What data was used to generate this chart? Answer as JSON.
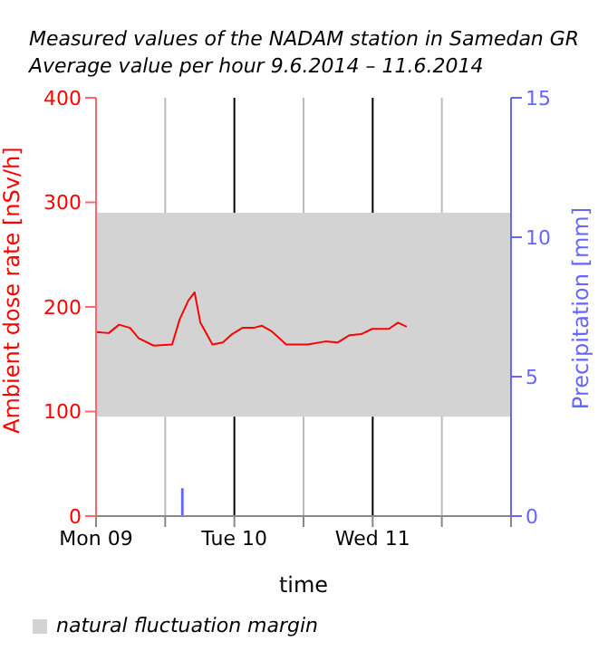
{
  "chart_data": {
    "type": "line",
    "title": "Measured values of the NADAM station in Samedan GR",
    "subtitle": "Average value per hour 9.6.2014 – 11.6.2014",
    "xlabel": "time",
    "ylabel": "Ambient dose rate [nSv/h]",
    "y2label": "Precipitation [mm]",
    "xlim": [
      "2014-06-09",
      "2014-06-12"
    ],
    "xticks": [
      {
        "value": "2014-06-09",
        "label": "Mon 09"
      },
      {
        "value": "2014-06-09T12:00",
        "label": null
      },
      {
        "value": "2014-06-10",
        "label": "Tue 10"
      },
      {
        "value": "2014-06-10T12:00",
        "label": null
      },
      {
        "value": "2014-06-11",
        "label": "Wed 11"
      },
      {
        "value": "2014-06-11T12:00",
        "label": null
      },
      {
        "value": "2014-06-12",
        "label": null
      }
    ],
    "ylim": [
      0,
      400
    ],
    "yticks": [
      0,
      100,
      200,
      300,
      400
    ],
    "y2lim": [
      0,
      15
    ],
    "y2ticks": [
      0,
      5,
      10,
      15
    ],
    "grid": "x",
    "legend": "bottom left",
    "marker": "none",
    "line_style": "solid",
    "bands": [
      {
        "axis": "y",
        "from": 95,
        "to": 290,
        "label": "natural fluctuation margin",
        "color": "#d3d3d3"
      }
    ],
    "series": [
      {
        "color": "#ff0000",
        "axis": "y",
        "x": [
          "2014-06-09T00:00",
          "2014-06-09T02:12",
          "2014-06-09T04:00",
          "2014-06-09T05:54",
          "2014-06-09T07:24",
          "2014-06-09T10:00",
          "2014-06-09T13:12",
          "2014-06-09T14:30",
          "2014-06-09T16:00",
          "2014-06-09T17:06",
          "2014-06-09T18:06",
          "2014-06-09T20:12",
          "2014-06-09T22:00",
          "2014-06-09T23:36",
          "2014-06-10T01:24",
          "2014-06-10T03:18",
          "2014-06-10T04:48",
          "2014-06-10T06:24",
          "2014-06-10T09:00",
          "2014-06-10T12:42",
          "2014-06-10T15:48",
          "2014-06-10T17:54",
          "2014-06-10T20:00",
          "2014-06-10T22:00",
          "2014-06-10T23:54",
          "2014-06-11T02:48",
          "2014-06-11T04:24",
          "2014-06-11T05:54"
        ],
        "values": [
          176,
          175,
          183,
          180,
          170,
          163,
          164,
          188,
          206,
          214,
          185,
          164,
          166,
          174,
          180,
          180,
          182,
          177,
          164,
          164,
          167,
          166,
          173,
          174,
          179,
          179,
          185,
          181
        ]
      },
      {
        "type": "bar",
        "color": "#6666ff",
        "axis": "y2",
        "x": [
          "2014-06-09T15:00"
        ],
        "values": [
          1
        ]
      }
    ]
  }
}
